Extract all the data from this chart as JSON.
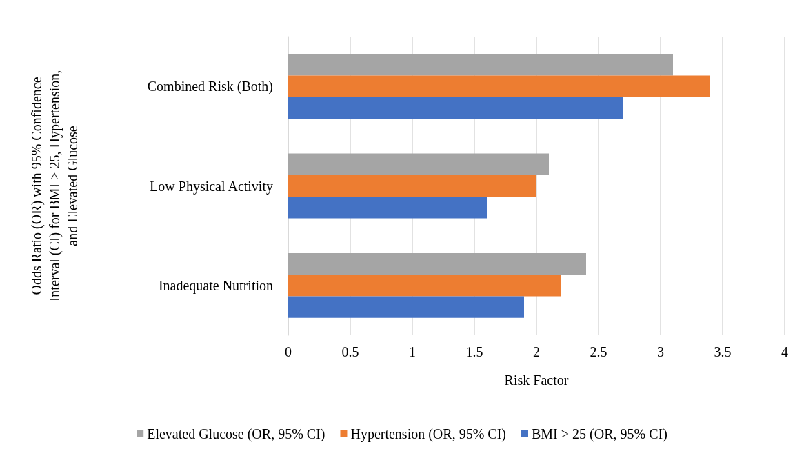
{
  "chart_data": {
    "type": "bar",
    "orientation": "horizontal",
    "ylabel": "Odds Ratio (OR) with 95% Confidence Interval (CI) for BMI > 25, Hypertension, and Elevated Glucose",
    "xlabel": "Risk Factor",
    "categories": [
      "Combined Risk (Both)",
      "Low Physical Activity",
      "Inadequate Nutrition"
    ],
    "series": [
      {
        "name": "Elevated Glucose (OR, 95% CI)",
        "color": "#a5a5a5",
        "values": [
          3.1,
          2.1,
          2.4
        ]
      },
      {
        "name": "Hypertension (OR, 95% CI)",
        "color": "#ed7d31",
        "values": [
          3.4,
          2.0,
          2.2
        ]
      },
      {
        "name": "BMI > 25 (OR, 95% CI)",
        "color": "#4472c4",
        "values": [
          2.7,
          1.6,
          1.9
        ]
      }
    ],
    "xlim": [
      0,
      4
    ],
    "xticks": [
      0,
      0.5,
      1,
      1.5,
      2,
      2.5,
      3,
      3.5,
      4
    ],
    "grid": "x",
    "legend": "bottom"
  }
}
